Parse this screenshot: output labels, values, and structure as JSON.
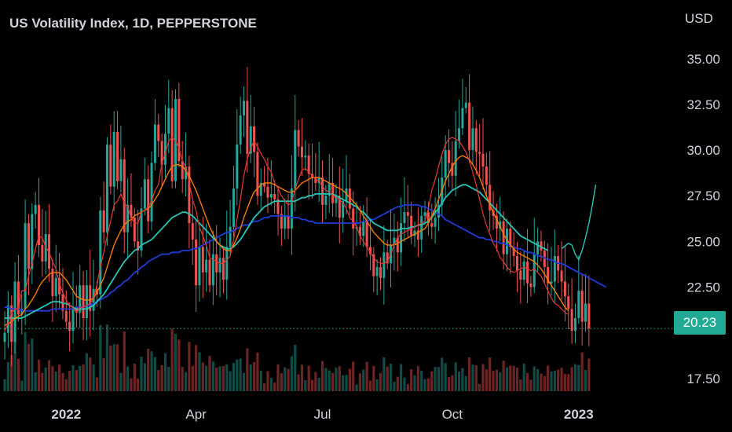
{
  "chart_data": {
    "type": "candlestick",
    "title": "US Volatility Index, 1D, PEPPERSTONE",
    "currency": "USD",
    "last_price": "20.23",
    "y_ticks": [
      "35.00",
      "32.50",
      "30.00",
      "27.50",
      "25.00",
      "22.50",
      "17.50"
    ],
    "ylim": [
      16.5,
      36.5
    ],
    "x_ticks": [
      {
        "label": "2022",
        "bold": true,
        "index": 18
      },
      {
        "label": "Apr",
        "bold": false,
        "index": 56
      },
      {
        "label": "Jul",
        "bold": false,
        "index": 93
      },
      {
        "label": "Oct",
        "bold": false,
        "index": 131
      },
      {
        "label": "2023",
        "bold": true,
        "index": 168
      }
    ],
    "grid": false,
    "colors": {
      "up": "#26a69a",
      "down": "#ef5350",
      "ma_fast": "#e53935",
      "ma_mid": "#f57c00",
      "ma_slow": "#26c6b6",
      "ma_long": "#1f3bd9",
      "price_line": "#22ab94",
      "text": "#d1d4dc"
    },
    "close": [
      20.0,
      21.5,
      19.5,
      22.8,
      21.0,
      21.3,
      26.0,
      23.5,
      26.5,
      27.0,
      24.8,
      23.9,
      25.4,
      23.5,
      22.0,
      23.0,
      22.1,
      21.2,
      20.6,
      20.1,
      21.4,
      21.1,
      22.6,
      20.8,
      22.6,
      21.2,
      22.4,
      22.1,
      26.7,
      25.5,
      30.3,
      28.0,
      31.0,
      28.3,
      29.5,
      25.5,
      27.0,
      26.3,
      25.0,
      24.5,
      26.8,
      28.4,
      26.1,
      29.3,
      31.4,
      30.5,
      29.2,
      30.9,
      32.3,
      28.3,
      32.8,
      29.4,
      28.4,
      29.1,
      26.0,
      25.1,
      22.6,
      24.7,
      23.3,
      24.0,
      22.6,
      24.3,
      23.3,
      24.1,
      22.9,
      24.7,
      25.8,
      27.9,
      30.3,
      31.9,
      32.7,
      29.8,
      31.3,
      29.9,
      27.5,
      28.2,
      28.0,
      27.4,
      27.6,
      27.3,
      26.5,
      25.7,
      26.4,
      25.7,
      27.9,
      31.1,
      30.2,
      29.6,
      29.7,
      28.7,
      28.5,
      28.2,
      28.5,
      27.0,
      27.5,
      28.2,
      27.1,
      27.5,
      26.3,
      27.2,
      27.9,
      26.8,
      25.7,
      25.8,
      25.3,
      26.1,
      24.7,
      24.3,
      23.1,
      23.6,
      23.0,
      24.4,
      23.8,
      24.8,
      25.2,
      24.4,
      26.0,
      26.6,
      26.4,
      25.3,
      25.6,
      25.1,
      26.4,
      26.6,
      26.0,
      25.8,
      26.3,
      27.0,
      28.5,
      30.0,
      29.3,
      28.6,
      30.5,
      31.2,
      32.3,
      32.6,
      30.0,
      31.2,
      29.9,
      29.8,
      29.1,
      28.1,
      26.7,
      26.4,
      25.7,
      26.1,
      24.3,
      25.7,
      24.7,
      24.2,
      23.4,
      22.9,
      23.9,
      22.7,
      22.5,
      24.3,
      25.0,
      24.5,
      23.6,
      22.7,
      22.8,
      24.2,
      23.4,
      22.8,
      22.0,
      21.3,
      20.1,
      20.8,
      22.3,
      20.6,
      21.6,
      20.23
    ],
    "ma_fast": [
      20.1,
      20.5,
      21.1,
      21.3,
      21.3,
      22.3,
      22.3,
      23.1,
      23.8,
      24.6,
      25.3,
      25.2,
      24.7,
      24.4,
      23.9,
      23.5,
      22.7,
      22.2,
      21.8,
      21.5,
      21.4,
      21.1,
      21.4,
      21.4,
      21.5,
      21.6,
      21.9,
      22.6,
      23.6,
      24.4,
      25.3,
      26.1,
      27.0,
      27.2,
      27.6,
      27.1,
      26.9,
      26.3,
      26.0,
      26.0,
      26.6,
      26.7,
      26.9,
      27.2,
      27.8,
      28.1,
      29.3,
      29.8,
      30.5,
      30.7,
      30.5,
      30.1,
      29.4,
      29.1,
      28.2,
      27.3,
      26.7,
      25.8,
      25.3,
      24.8,
      24.1,
      24.0,
      23.9,
      23.8,
      23.8,
      24.0,
      24.2,
      25.1,
      26.2,
      27.3,
      28.6,
      29.5,
      30.1,
      30.5,
      30.2,
      29.8,
      29.5,
      29.1,
      28.8,
      28.2,
      27.9,
      27.5,
      27.2,
      27.0,
      27.1,
      27.9,
      28.4,
      28.9,
      29.0,
      28.8,
      28.6,
      28.4,
      28.3,
      28.0,
      27.8,
      27.7,
      27.5,
      27.4,
      27.3,
      27.1,
      26.8,
      26.3,
      26.1,
      25.8,
      25.3,
      25.0,
      24.7,
      24.4,
      24.1,
      23.9,
      23.8,
      23.8,
      23.9,
      24.3,
      24.8,
      25.2,
      25.4,
      25.5,
      25.6,
      25.7,
      25.8,
      25.9,
      26.0,
      26.1,
      26.8,
      27.8,
      28.4,
      29.1,
      29.8,
      30.3,
      30.6,
      30.7,
      30.6,
      30.5,
      30.2,
      29.9,
      29.4,
      28.8,
      28.1,
      27.3,
      26.5,
      25.9,
      25.4,
      24.9,
      24.6,
      24.1,
      23.9,
      23.6,
      23.4,
      23.3,
      23.4,
      23.5,
      23.6,
      23.5,
      23.4,
      23.5,
      23.3,
      23.1,
      22.7,
      22.3,
      21.9,
      21.6,
      21.5,
      21.3,
      21.1,
      21.0
    ],
    "ma_mid": [
      20.4,
      20.5,
      20.6,
      20.8,
      20.9,
      21.0,
      21.3,
      21.5,
      21.8,
      22.1,
      22.5,
      22.8,
      23.0,
      23.2,
      23.3,
      23.3,
      23.3,
      23.1,
      22.9,
      22.6,
      22.3,
      22.0,
      21.9,
      21.8,
      21.8,
      21.8,
      21.9,
      22.2,
      22.6,
      23.0,
      23.6,
      24.2,
      24.8,
      25.2,
      25.6,
      25.9,
      26.1,
      26.2,
      26.4,
      26.5,
      26.6,
      26.7,
      26.8,
      27.0,
      27.3,
      27.6,
      28.0,
      28.4,
      28.8,
      29.1,
      29.2,
      29.2,
      29.1,
      28.9,
      28.6,
      28.2,
      27.8,
      27.3,
      26.8,
      26.3,
      25.8,
      25.4,
      25.0,
      24.8,
      24.6,
      24.5,
      24.5,
      24.8,
      25.2,
      25.7,
      26.3,
      26.8,
      27.3,
      27.7,
      27.9,
      28.1,
      28.2,
      28.2,
      28.2,
      28.1,
      28.0,
      27.9,
      27.8,
      27.7,
      27.7,
      27.8,
      28.0,
      28.2,
      28.3,
      28.4,
      28.5,
      28.5,
      28.5,
      28.4,
      28.3,
      28.2,
      28.1,
      28.0,
      27.9,
      27.8,
      27.6,
      27.4,
      27.2,
      27.0,
      26.7,
      26.4,
      26.1,
      25.8,
      25.5,
      25.3,
      25.1,
      24.9,
      24.8,
      24.8,
      24.8,
      24.9,
      25.0,
      25.1,
      25.2,
      25.3,
      25.4,
      25.5,
      25.6,
      25.7,
      26.0,
      26.4,
      26.8,
      27.3,
      27.8,
      28.3,
      28.7,
      29.1,
      29.4,
      29.6,
      29.7,
      29.6,
      29.5,
      29.2,
      28.9,
      28.5,
      28.0,
      27.5,
      27.0,
      26.6,
      26.2,
      25.8,
      25.4,
      25.1,
      24.8,
      24.6,
      24.4,
      24.3,
      24.2,
      24.1,
      24.0,
      23.9,
      23.7,
      23.5,
      23.2,
      22.9,
      22.6,
      22.3,
      22.0,
      21.7,
      21.4,
      21.2
    ],
    "ma_slow": [
      20.8,
      20.8,
      20.8,
      20.8,
      20.8,
      20.8,
      20.9,
      21.0,
      21.1,
      21.2,
      21.3,
      21.4,
      21.5,
      21.6,
      21.7,
      21.7,
      21.7,
      21.6,
      21.6,
      21.5,
      21.4,
      21.3,
      21.3,
      21.3,
      21.3,
      21.4,
      21.5,
      21.7,
      21.9,
      22.1,
      22.4,
      22.7,
      23.0,
      23.3,
      23.6,
      23.9,
      24.1,
      24.3,
      24.5,
      24.6,
      24.8,
      24.9,
      25.0,
      25.1,
      25.3,
      25.5,
      25.7,
      25.9,
      26.1,
      26.3,
      26.4,
      26.5,
      26.6,
      26.6,
      26.5,
      26.4,
      26.2,
      26.0,
      25.8,
      25.6,
      25.4,
      25.2,
      25.0,
      24.8,
      24.7,
      24.6,
      24.6,
      24.7,
      24.9,
      25.1,
      25.4,
      25.7,
      26.0,
      26.3,
      26.5,
      26.7,
      26.9,
      27.0,
      27.1,
      27.2,
      27.2,
      27.2,
      27.2,
      27.2,
      27.2,
      27.2,
      27.3,
      27.4,
      27.4,
      27.5,
      27.5,
      27.6,
      27.6,
      27.6,
      27.6,
      27.6,
      27.6,
      27.5,
      27.4,
      27.3,
      27.2,
      27.1,
      27.0,
      26.9,
      26.7,
      26.6,
      26.4,
      26.2,
      26.0,
      25.9,
      25.8,
      25.7,
      25.6,
      25.6,
      25.6,
      25.6,
      25.7,
      25.7,
      25.7,
      25.8,
      25.8,
      25.9,
      25.9,
      26.0,
      26.1,
      26.3,
      26.6,
      26.8,
      27.1,
      27.4,
      27.6,
      27.8,
      27.9,
      28.0,
      28.1,
      28.1,
      28.0,
      27.9,
      27.8,
      27.7,
      27.5,
      27.3,
      27.1,
      26.9,
      26.7,
      26.5,
      26.3,
      26.1,
      25.9,
      25.7,
      25.5,
      25.3,
      25.2,
      25.1,
      25.0,
      24.9,
      24.8,
      24.7,
      24.6,
      24.5
    ],
    "ma_slow_tail": [
      [
        163,
        24.6
      ],
      [
        165,
        24.9
      ],
      [
        166,
        24.8
      ],
      [
        167,
        24.3
      ],
      [
        168,
        24.0
      ],
      [
        169,
        24.5
      ],
      [
        170,
        25.2
      ],
      [
        171,
        26.0
      ],
      [
        172,
        27.0
      ],
      [
        173,
        28.1
      ]
    ],
    "ma_long": [
      21.4,
      21.4,
      21.3,
      21.3,
      21.3,
      21.2,
      21.2,
      21.2,
      21.2,
      21.2,
      21.2,
      21.2,
      21.2,
      21.2,
      21.3,
      21.3,
      21.3,
      21.3,
      21.3,
      21.3,
      21.3,
      21.4,
      21.4,
      21.4,
      21.5,
      21.5,
      21.6,
      21.7,
      21.8,
      21.9,
      22.0,
      22.2,
      22.3,
      22.5,
      22.6,
      22.8,
      22.9,
      23.1,
      23.3,
      23.4,
      23.6,
      23.7,
      23.9,
      24.0,
      24.1,
      24.2,
      24.3,
      24.3,
      24.3,
      24.4,
      24.4,
      24.4,
      24.5,
      24.5,
      24.5,
      24.6,
      24.6,
      24.7,
      24.8,
      24.9,
      25.0,
      25.1,
      25.2,
      25.3,
      25.4,
      25.5,
      25.5,
      25.6,
      25.7,
      25.8,
      25.9,
      25.9,
      26.0,
      26.1,
      26.1,
      26.2,
      26.3,
      26.3,
      26.4,
      26.4,
      26.4,
      26.4,
      26.4,
      26.4,
      26.3,
      26.3,
      26.3,
      26.2,
      26.2,
      26.1,
      26.1,
      26.0,
      26.0,
      26.0,
      26.0,
      26.0,
      26.0,
      26.0,
      26.0,
      26.0,
      26.0,
      26.0,
      26.0,
      26.0,
      26.0,
      26.1,
      26.1,
      26.2,
      26.2,
      26.3,
      26.4,
      26.5,
      26.6,
      26.7,
      26.8,
      26.9,
      26.9,
      27.0,
      27.0,
      27.0,
      27.0,
      27.0,
      26.9,
      26.9,
      26.8,
      26.7,
      26.6,
      26.5,
      26.4,
      26.2,
      26.1,
      26.0,
      25.9,
      25.8,
      25.7,
      25.6,
      25.5,
      25.4,
      25.3,
      25.2,
      25.2,
      25.1,
      25.1,
      25.0,
      25.0,
      24.9,
      24.9,
      24.8,
      24.8,
      24.7,
      24.6,
      24.6,
      24.5,
      24.4,
      24.4,
      24.3,
      24.2,
      24.2,
      24.1,
      24.0,
      24.0,
      23.9,
      23.8,
      23.8,
      23.7,
      23.6,
      23.5,
      23.4,
      23.3,
      23.2,
      23.1,
      23.0,
      22.9,
      22.8,
      22.7,
      22.6,
      22.5
    ]
  }
}
